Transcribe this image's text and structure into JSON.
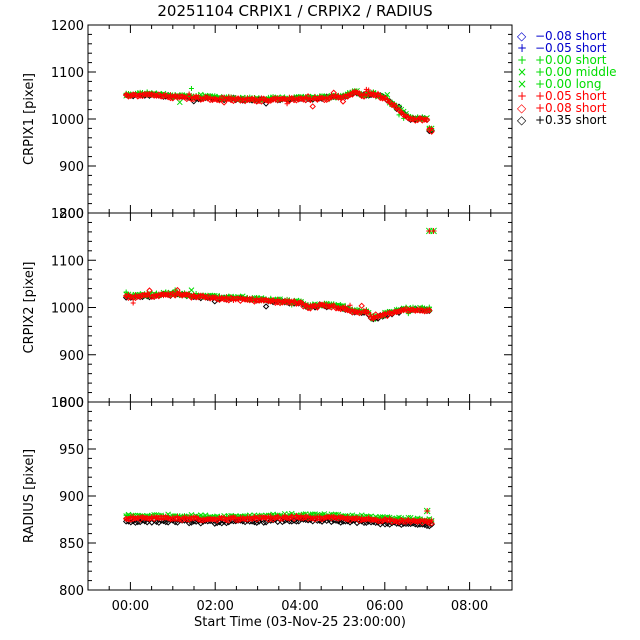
{
  "title": "20251104 CRPIX1 / CRPIX2 / RADIUS",
  "chart_data": [
    {
      "type": "scatter",
      "ylabel": "CRPIX1 [pixel]",
      "ylim": [
        800,
        1200
      ],
      "yticks": [
        800,
        900,
        1000,
        1100,
        1200
      ],
      "xlim": [
        -1,
        9
      ],
      "xticks": [
        0,
        2,
        4,
        6,
        8
      ],
      "trend": [
        [
          -0.1,
          1050
        ],
        [
          0.5,
          1052
        ],
        [
          1.0,
          1047
        ],
        [
          2.0,
          1044
        ],
        [
          2.5,
          1042
        ],
        [
          3.0,
          1041
        ],
        [
          3.5,
          1042
        ],
        [
          4.0,
          1043
        ],
        [
          4.5,
          1044
        ],
        [
          5.0,
          1047
        ],
        [
          5.3,
          1057
        ],
        [
          5.5,
          1050
        ],
        [
          5.8,
          1053
        ],
        [
          6.0,
          1043
        ],
        [
          6.2,
          1030
        ],
        [
          6.4,
          1015
        ],
        [
          6.6,
          1000
        ],
        [
          7.0,
          1000
        ],
        [
          7.01,
          976
        ],
        [
          7.15,
          976
        ]
      ]
    },
    {
      "type": "scatter",
      "ylabel": "CRPIX2 [pixel]",
      "ylim": [
        800,
        1200
      ],
      "yticks": [
        800,
        900,
        1000,
        1100,
        1200
      ],
      "xlim": [
        -1,
        9
      ],
      "xticks": [
        0,
        2,
        4,
        6,
        8
      ],
      "trend": [
        [
          -0.1,
          1023
        ],
        [
          0.5,
          1025
        ],
        [
          1.0,
          1028
        ],
        [
          2.0,
          1020
        ],
        [
          3.0,
          1016
        ],
        [
          4.0,
          1010
        ],
        [
          4.2,
          1000
        ],
        [
          4.5,
          1005
        ],
        [
          5.0,
          1000
        ],
        [
          5.3,
          990
        ],
        [
          5.6,
          990
        ],
        [
          5.7,
          975
        ],
        [
          6.0,
          985
        ],
        [
          6.5,
          995
        ],
        [
          7.0,
          995
        ],
        [
          7.1,
          995
        ]
      ],
      "outliers": [
        [
          7.05,
          1162
        ],
        [
          7.15,
          1162
        ]
      ]
    },
    {
      "type": "scatter",
      "ylabel": "RADIUS [pixel]",
      "ylim": [
        800,
        1000
      ],
      "yticks": [
        800,
        850,
        900,
        950,
        1000
      ],
      "xlim": [
        -1,
        9
      ],
      "xticks": [
        0,
        2,
        4,
        6,
        8
      ],
      "xlabel": "Start Time (03-Nov-25 23:00:00)",
      "ticklabels": [
        "00:00",
        "02:00",
        "04:00",
        "06:00",
        "08:00"
      ],
      "trend": [
        [
          -0.1,
          876
        ],
        [
          1.0,
          876
        ],
        [
          2.0,
          875
        ],
        [
          3.0,
          876
        ],
        [
          4.0,
          877
        ],
        [
          5.0,
          876
        ],
        [
          6.0,
          874
        ],
        [
          7.0,
          872
        ],
        [
          7.15,
          872
        ]
      ],
      "outliers": [
        [
          7.0,
          884
        ]
      ]
    }
  ],
  "legend": [
    {
      "symbol": "◇",
      "label": "−0.08 short",
      "color": "#0000cc"
    },
    {
      "symbol": "+",
      "label": "−0.05 short",
      "color": "#0000cc"
    },
    {
      "symbol": "+",
      "label": "+0.00 short",
      "color": "#00dd00"
    },
    {
      "symbol": "×",
      "label": "+0.00 middle",
      "color": "#00dd00"
    },
    {
      "symbol": "×",
      "label": "+0.00 long",
      "color": "#00dd00"
    },
    {
      "symbol": "+",
      "label": "+0.05 short",
      "color": "#ff0000"
    },
    {
      "symbol": "◇",
      "label": "+0.08 short",
      "color": "#ff0000"
    },
    {
      "symbol": "◇",
      "label": "+0.35 short",
      "color": "#000000"
    }
  ]
}
